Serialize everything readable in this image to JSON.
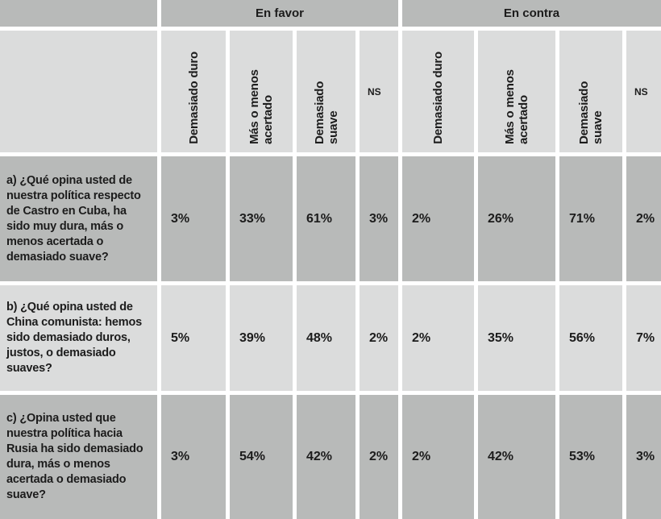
{
  "chart_data": {
    "type": "table",
    "group_headers": [
      {
        "label": "En favor",
        "span": 4
      },
      {
        "label": "En contra",
        "span": 4
      }
    ],
    "column_headers": [
      "Demasiado duro",
      "Más o menos acertado",
      "Demasiado suave",
      "NS",
      "Demasiado duro",
      "Más o menos acertado",
      "Demasiado suave",
      "NS"
    ],
    "rows": [
      {
        "question": "a) ¿Qué opina usted de nuestra política respecto de Castro en Cuba, ha sido muy dura, más o menos acertada o demasiado suave?",
        "values": [
          "3%",
          "33%",
          "61%",
          "3%",
          "2%",
          "26%",
          "71%",
          "2%"
        ]
      },
      {
        "question": "b) ¿Qué opina usted de China comunista: hemos sido demasiado duros, justos, o demasiado suaves?",
        "values": [
          "5%",
          "39%",
          "48%",
          "2%",
          "2%",
          "35%",
          "56%",
          "7%"
        ]
      },
      {
        "question": "c) ¿Opina usted que nuestra política hacia Rusia ha sido demasiado dura, más o menos acertada o demasiado suave?",
        "values": [
          "3%",
          "54%",
          "42%",
          "2%",
          "2%",
          "42%",
          "53%",
          "3%"
        ]
      }
    ],
    "layout": {
      "row_shading": [
        "dark",
        "light",
        "dark"
      ],
      "header_shading": "light",
      "band_shading": "dark"
    }
  },
  "colors": {
    "dark_cell": "#b8bab9",
    "light_cell": "#dbdcdc",
    "text": "#1c1c1c",
    "background": "#ffffff"
  }
}
